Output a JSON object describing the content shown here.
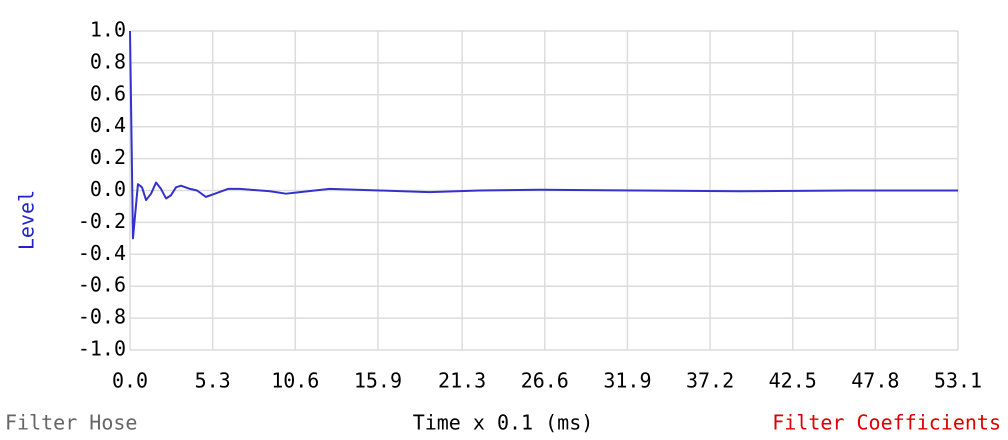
{
  "chart_data": {
    "type": "line",
    "xlabel": "Time x 0.1 (ms)",
    "ylabel": "Level",
    "x": [
      0,
      0.19,
      0.51,
      0.77,
      1.03,
      1.35,
      1.67,
      1.99,
      2.31,
      2.63,
      2.95,
      3.27,
      3.85,
      4.3,
      4.87,
      5.45,
      6.28,
      7.05,
      8.98,
      10.0,
      10.9,
      12.8,
      16.0,
      19.2,
      22.4,
      26.3,
      32.7,
      39.1,
      46.2,
      53.1
    ],
    "values": [
      1.0,
      -0.3,
      0.04,
      0.02,
      -0.06,
      -0.02,
      0.05,
      0.01,
      -0.05,
      -0.03,
      0.02,
      0.03,
      0.01,
      0.0,
      -0.04,
      -0.02,
      0.01,
      0.01,
      -0.005,
      -0.02,
      -0.01,
      0.01,
      0.0,
      -0.01,
      0.0,
      0.005,
      0.0,
      -0.005,
      0.0,
      0.0
    ],
    "color": "#3333cc",
    "xlim": [
      0,
      53.1
    ],
    "ylim": [
      -1,
      1
    ],
    "xticks": [
      {
        "value": 0,
        "label": "0.0"
      },
      5.3,
      10.6,
      15.9,
      21.3,
      26.6,
      31.9,
      37.2,
      42.5,
      47.8,
      53.1
    ],
    "yticks": [
      {
        "value": 1,
        "label": "1.0"
      },
      0.8,
      0.6,
      0.4,
      0.2,
      {
        "value": 0,
        "label": "0.0"
      },
      -0.2,
      -0.4,
      -0.6,
      -0.8,
      {
        "value": -1,
        "label": "-1.0"
      }
    ],
    "grid": true
  },
  "footer": {
    "left": "Filter Hose",
    "right": "Filter Coefficients"
  }
}
